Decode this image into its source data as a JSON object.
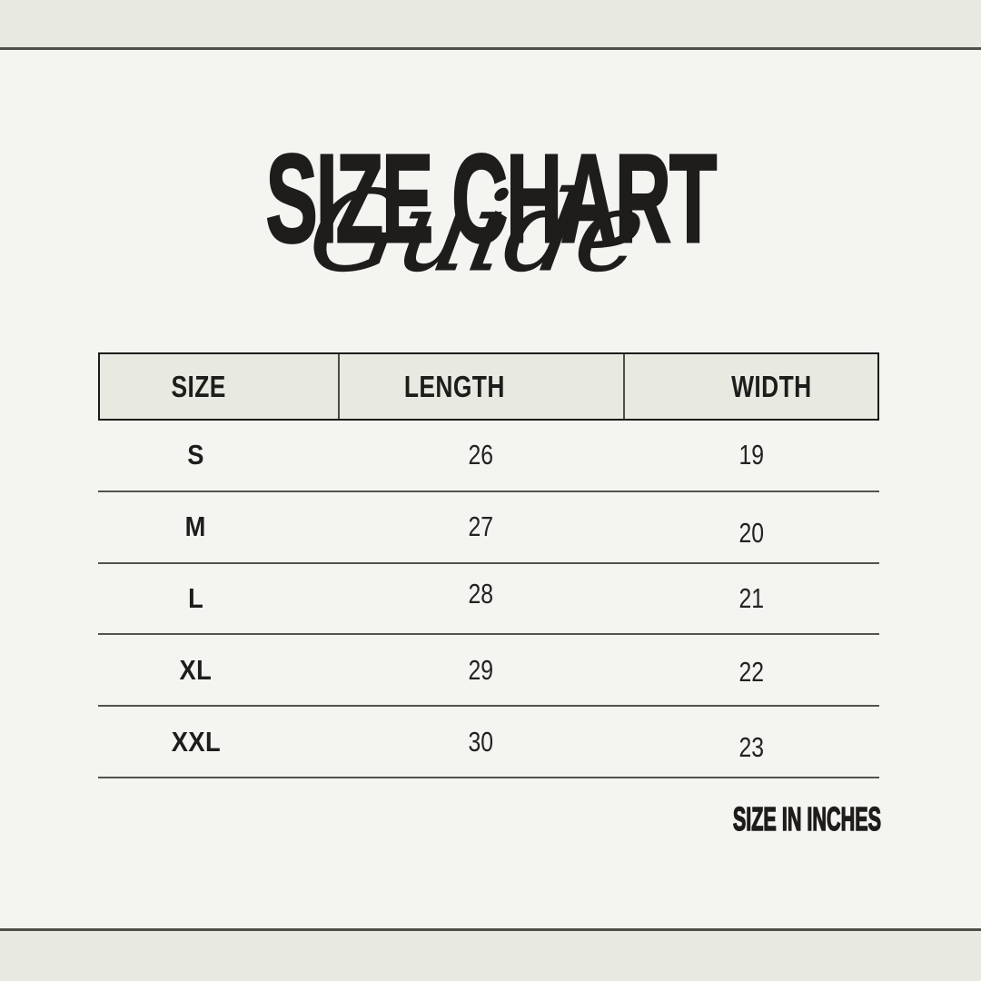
{
  "title": {
    "main": "SIZE CHART",
    "script": "Guide"
  },
  "table": {
    "headers": [
      "SIZE",
      "LENGTH",
      "WIDTH"
    ],
    "rows": [
      {
        "size": "S",
        "length": "26",
        "width": "19"
      },
      {
        "size": "M",
        "length": "27",
        "width": "20"
      },
      {
        "size": "L",
        "length": "28",
        "width": "21"
      },
      {
        "size": "XL",
        "length": "29",
        "width": "22"
      },
      {
        "size": "XXL",
        "length": "30",
        "width": "23"
      }
    ]
  },
  "footer": {
    "note": "SIZE IN INCHES"
  },
  "colors": {
    "background": "#f4f4f1",
    "band": "#e8e9e1",
    "rule": "#50504a",
    "header_border": "#1c1b19",
    "text": "#1e1d1b"
  },
  "chart_data": {
    "type": "table",
    "title": "SIZE CHART Guide",
    "columns": [
      "SIZE",
      "LENGTH",
      "WIDTH"
    ],
    "rows": [
      [
        "S",
        26,
        19
      ],
      [
        "M",
        27,
        20
      ],
      [
        "L",
        28,
        21
      ],
      [
        "XL",
        29,
        22
      ],
      [
        "XXL",
        30,
        23
      ]
    ],
    "units": "inches"
  }
}
